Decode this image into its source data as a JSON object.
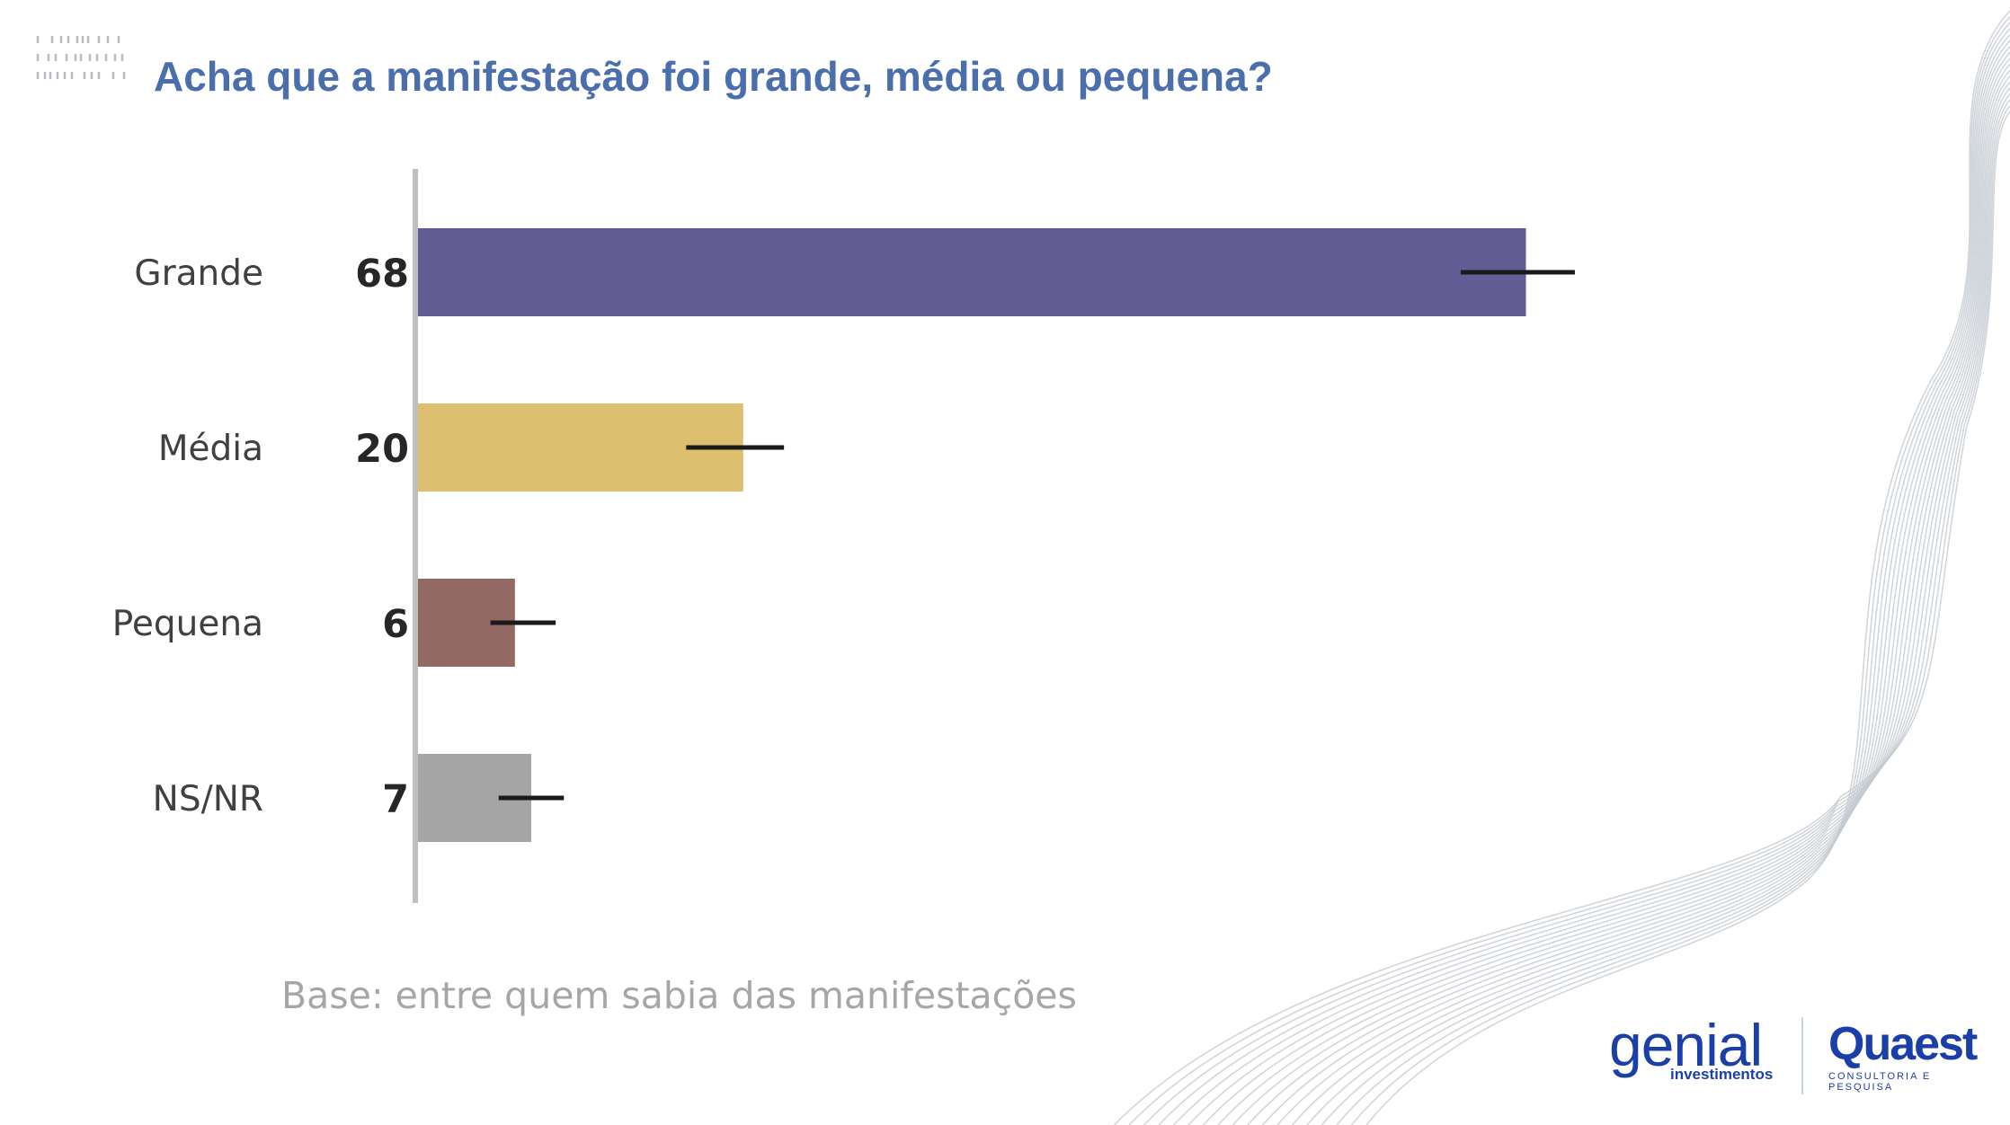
{
  "title": "Acha que a manifestação foi grande, média ou pequena?",
  "footnote": "Base: entre quem sabia das manifestações",
  "logos": {
    "genial_main": "genial",
    "genial_sub": "investimentos",
    "quaest_main": "Quaest",
    "quaest_sub": "CONSULTORIA E PESQUISA"
  },
  "chart_data": {
    "type": "bar",
    "orientation": "horizontal",
    "categories": [
      "Grande",
      "Média",
      "Pequena",
      "NS/NR"
    ],
    "values": [
      68,
      20,
      6,
      7
    ],
    "value_labels": [
      "68",
      "20",
      "6",
      "7"
    ],
    "error_bars": [
      [
        64,
        71
      ],
      [
        16.5,
        22.5
      ],
      [
        4.5,
        8.5
      ],
      [
        5,
        9
      ]
    ],
    "colors": [
      "#625d95",
      "#dcc06f",
      "#926a63",
      "#a5a5a5"
    ],
    "xlim": [
      0,
      100
    ],
    "title": "Acha que a manifestação foi grande, média ou pequena?",
    "xlabel": "",
    "ylabel": "",
    "grid": false,
    "legend": "none"
  }
}
